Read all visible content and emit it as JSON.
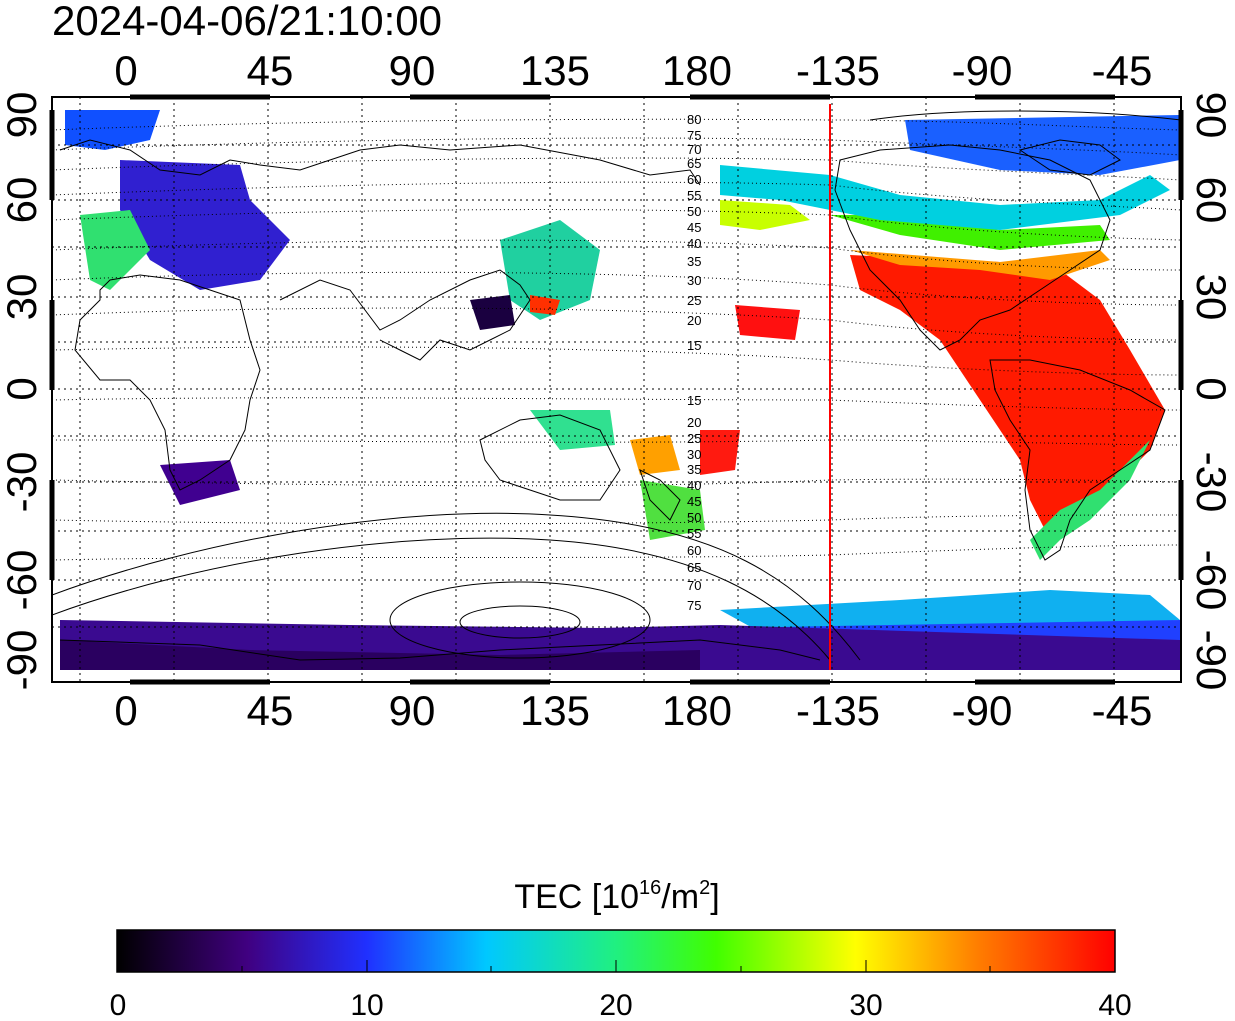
{
  "title": "2024-04-06/21:10:00",
  "map": {
    "top_lon_labels": [
      "0",
      "45",
      "90",
      "135",
      "180",
      "-135",
      "-90",
      "-45"
    ],
    "bottom_lon_labels": [
      "0",
      "45",
      "90",
      "135",
      "180",
      "-135",
      "-90",
      "-45"
    ],
    "left_lat_labels": [
      "90",
      "60",
      "30",
      "0",
      "-30",
      "-60",
      "-90"
    ],
    "right_lat_labels": [
      "90",
      "60",
      "30",
      "0",
      "-30",
      "-60",
      "-90"
    ],
    "north_contour_labels": [
      "80",
      "75",
      "70",
      "65",
      "60",
      "55",
      "50",
      "45",
      "40",
      "35",
      "30",
      "25",
      "20",
      "15"
    ],
    "south_contour_labels": [
      "15",
      "20",
      "25",
      "30",
      "35",
      "40",
      "45",
      "50",
      "55",
      "60",
      "65",
      "70",
      "75"
    ],
    "terminator_line_color": "#ff0000",
    "terminator_longitude": -141
  },
  "colorbar": {
    "title_prefix": "TEC  [10",
    "title_sup1": "16",
    "title_mid": "/m",
    "title_sup2": "2",
    "title_suffix": "]",
    "tick_labels": [
      "0",
      "10",
      "20",
      "30",
      "40"
    ],
    "min": 0,
    "max": 40,
    "colormap": [
      "#000000",
      "#400080",
      "#2030ff",
      "#00c8ff",
      "#20f080",
      "#40ff00",
      "#ffff00",
      "#ff8000",
      "#ff0000"
    ]
  }
}
